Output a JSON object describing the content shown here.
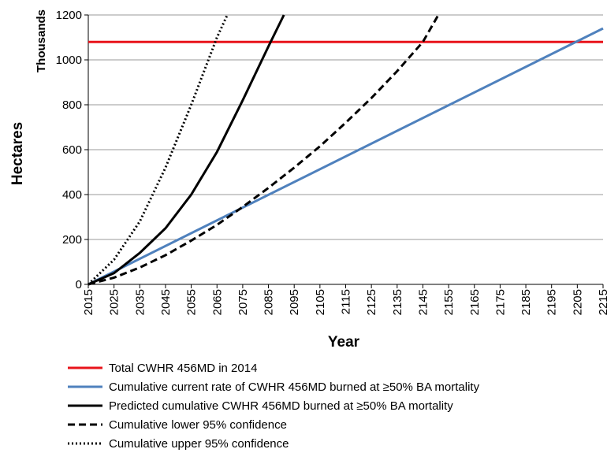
{
  "chart_data": {
    "type": "line",
    "x_label": "Year",
    "y_label": "Hectares",
    "y_unit_label": "Thousands",
    "xlim": [
      2015,
      2215
    ],
    "ylim": [
      0,
      1200
    ],
    "xticks": [
      2015,
      2025,
      2035,
      2045,
      2055,
      2065,
      2075,
      2085,
      2095,
      2105,
      2115,
      2125,
      2135,
      2145,
      2155,
      2165,
      2175,
      2185,
      2195,
      2205,
      2215
    ],
    "yticks": [
      0,
      200,
      400,
      600,
      800,
      1000,
      1200
    ],
    "grid": true,
    "series": [
      {
        "name": "Total CWHR 456MD in 2014",
        "color": "#e8141b",
        "dash": "solid",
        "x": [
          2015,
          2215
        ],
        "values": [
          1080,
          1080
        ]
      },
      {
        "name": "Cumulative current rate of CWHR 456MD burned at ≥50% BA mortality",
        "color": "#4f81bd",
        "dash": "solid",
        "x": [
          2015,
          2215
        ],
        "values": [
          0,
          1140
        ]
      },
      {
        "name": "Predicted cumulative CWHR 456MD burned at ≥50% BA mortality",
        "color": "#000000",
        "dash": "solid",
        "x": [
          2015,
          2025,
          2035,
          2045,
          2055,
          2065,
          2075,
          2085,
          2091
        ],
        "values": [
          0,
          50,
          140,
          250,
          400,
          590,
          820,
          1060,
          1200
        ]
      },
      {
        "name": "Cumulative lower 95% confidence",
        "color": "#000000",
        "dash": "dashed",
        "x": [
          2015,
          2025,
          2035,
          2045,
          2055,
          2065,
          2075,
          2085,
          2095,
          2105,
          2115,
          2125,
          2135,
          2145,
          2151
        ],
        "values": [
          0,
          30,
          75,
          130,
          195,
          265,
          345,
          430,
          520,
          615,
          720,
          830,
          950,
          1080,
          1200
        ]
      },
      {
        "name": "Cumulative upper 95% confidence",
        "color": "#000000",
        "dash": "dotted",
        "x": [
          2015,
          2025,
          2035,
          2045,
          2055,
          2065,
          2069
        ],
        "values": [
          0,
          110,
          280,
          520,
          800,
          1100,
          1200
        ]
      }
    ]
  }
}
